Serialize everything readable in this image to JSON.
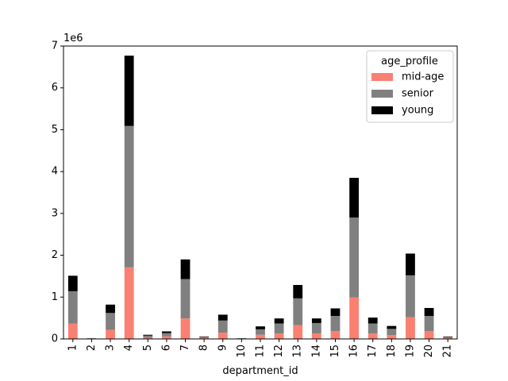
{
  "chart_data": {
    "type": "bar",
    "stacked": true,
    "xlabel": "department_id",
    "ylabel": "",
    "offset_label": "1e6",
    "ylim": [
      0,
      7000000
    ],
    "yticks": [
      0,
      1,
      2,
      3,
      4,
      5,
      6,
      7
    ],
    "categories": [
      "1",
      "2",
      "3",
      "4",
      "5",
      "6",
      "7",
      "8",
      "9",
      "10",
      "11",
      "12",
      "13",
      "14",
      "15",
      "16",
      "17",
      "18",
      "19",
      "20",
      "21"
    ],
    "series": [
      {
        "name": "mid-age",
        "color": "#fa8072",
        "values": [
          370000,
          5000,
          220000,
          1710000,
          30000,
          60000,
          490000,
          20000,
          150000,
          5000,
          100000,
          130000,
          330000,
          130000,
          190000,
          990000,
          130000,
          90000,
          520000,
          190000,
          20000
        ]
      },
      {
        "name": "senior",
        "color": "#808080",
        "values": [
          770000,
          10000,
          400000,
          3380000,
          50000,
          80000,
          940000,
          30000,
          290000,
          10000,
          130000,
          240000,
          640000,
          250000,
          360000,
          1910000,
          240000,
          150000,
          1000000,
          360000,
          30000
        ]
      },
      {
        "name": "young",
        "color": "#000000",
        "values": [
          370000,
          2000,
          200000,
          1680000,
          20000,
          40000,
          470000,
          10000,
          140000,
          3000,
          70000,
          120000,
          320000,
          110000,
          180000,
          950000,
          140000,
          70000,
          520000,
          190000,
          10000
        ]
      }
    ],
    "legend": {
      "title": "age_profile",
      "placement": "top-right"
    },
    "grid": false
  }
}
